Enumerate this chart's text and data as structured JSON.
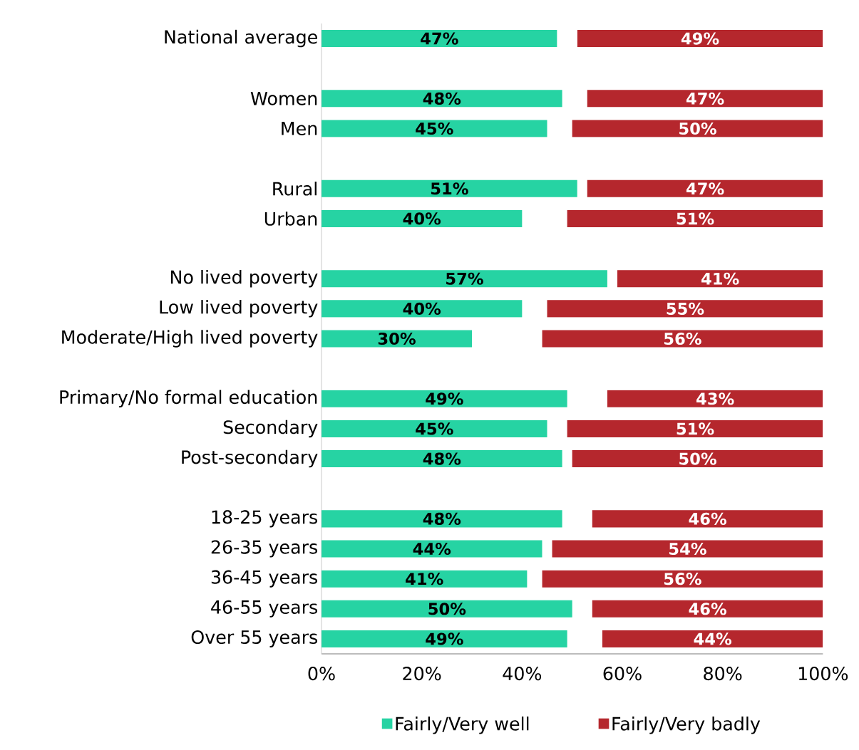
{
  "chart_data": {
    "type": "bar",
    "orientation": "horizontal",
    "legend": "bottom",
    "categories": [
      "National average",
      null,
      "Women",
      "Men",
      null,
      "Rural",
      "Urban",
      null,
      "No lived poverty",
      "Low lived poverty",
      "Moderate/High lived poverty",
      null,
      "Primary/No formal education",
      "Secondary",
      "Post-secondary",
      null,
      "18-25 years",
      "26-35 years",
      "36-45 years",
      "46-55 years",
      "Over 55 years"
    ],
    "series": [
      {
        "name": "Fairly/Very well",
        "color": "#26d3a3",
        "base": [
          0,
          null,
          0,
          0,
          null,
          0,
          0,
          null,
          0,
          0,
          0,
          null,
          0,
          0,
          0,
          null,
          0,
          0,
          0,
          0,
          0
        ],
        "values": [
          47,
          null,
          48,
          45,
          null,
          51,
          40,
          null,
          57,
          40,
          30,
          null,
          49,
          45,
          48,
          null,
          48,
          44,
          41,
          50,
          49
        ],
        "value_labels": [
          "47%",
          null,
          "48%",
          "45%",
          null,
          "51%",
          "40%",
          null,
          "57%",
          "40%",
          "30%",
          null,
          "49%",
          "45%",
          "48%",
          null,
          "48%",
          "44%",
          "41%",
          "50%",
          "49%"
        ]
      },
      {
        "name": "Fairly/Very badly",
        "color": "#b5272d",
        "base": [
          51,
          null,
          53,
          50,
          null,
          53,
          49,
          null,
          59,
          45,
          44,
          null,
          57,
          49,
          50,
          null,
          54,
          46,
          44,
          54,
          56
        ],
        "values": [
          49,
          null,
          47,
          50,
          null,
          47,
          51,
          null,
          41,
          55,
          56,
          null,
          43,
          51,
          50,
          null,
          46,
          54,
          56,
          46,
          44
        ],
        "value_labels": [
          "49%",
          null,
          "47%",
          "50%",
          null,
          "47%",
          "51%",
          null,
          "41%",
          "55%",
          "56%",
          null,
          "43%",
          "51%",
          "50%",
          null,
          "46%",
          "54%",
          "56%",
          "46%",
          "44%"
        ]
      }
    ],
    "xlim": [
      0,
      100
    ],
    "xticks": [
      {
        "value": 0,
        "label": "0%"
      },
      {
        "value": 20,
        "label": "20%"
      },
      {
        "value": 40,
        "label": "40%"
      },
      {
        "value": 60,
        "label": "60%"
      },
      {
        "value": 80,
        "label": "80%"
      },
      {
        "value": 100,
        "label": "100%"
      }
    ]
  }
}
